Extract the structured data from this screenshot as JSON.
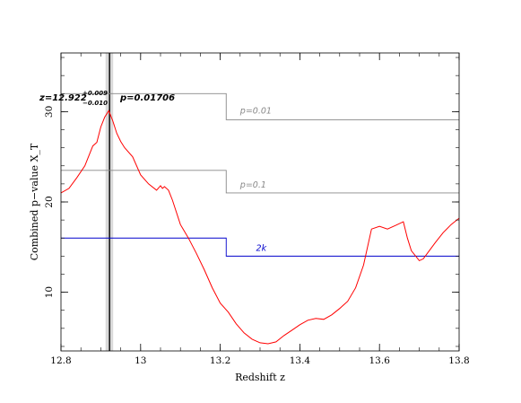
{
  "chart_data": {
    "type": "line",
    "title": "",
    "xlabel": "Redshift z",
    "ylabel": "Combined p−value X_T",
    "xlim": [
      12.8,
      13.8
    ],
    "ylim": [
      3.5,
      36.5
    ],
    "grid": false,
    "x_ticks": [
      {
        "value": 12.8,
        "label": "12.8"
      },
      {
        "value": 13.0,
        "label": "13"
      },
      {
        "value": 13.2,
        "label": "13.2"
      },
      {
        "value": 13.4,
        "label": "13.4"
      },
      {
        "value": 13.6,
        "label": "13.6"
      },
      {
        "value": 13.8,
        "label": "13.8"
      }
    ],
    "y_ticks": [
      {
        "value": 10,
        "label": "10"
      },
      {
        "value": 20,
        "label": "20"
      },
      {
        "value": 30,
        "label": "30"
      }
    ],
    "colors": {
      "curve": "#ff0000",
      "threshold_gray": "#888888",
      "threshold_blue": "#0000cc",
      "band": "#cccccc",
      "peak_line": "#000000"
    },
    "curve": {
      "x": [
        12.8,
        12.82,
        12.84,
        12.86,
        12.88,
        12.89,
        12.9,
        12.91,
        12.92,
        12.93,
        12.94,
        12.95,
        12.96,
        12.98,
        13.0,
        13.02,
        13.04,
        13.05,
        13.055,
        13.06,
        13.07,
        13.08,
        13.1,
        13.12,
        13.14,
        13.16,
        13.18,
        13.2,
        13.22,
        13.24,
        13.26,
        13.28,
        13.3,
        13.32,
        13.34,
        13.36,
        13.38,
        13.4,
        13.42,
        13.44,
        13.46,
        13.48,
        13.5,
        13.52,
        13.54,
        13.56,
        13.58,
        13.6,
        13.62,
        13.64,
        13.66,
        13.67,
        13.68,
        13.7,
        13.71,
        13.72,
        13.74,
        13.76,
        13.78,
        13.8
      ],
      "y": [
        21.0,
        21.5,
        22.7,
        24.0,
        26.2,
        26.6,
        28.3,
        29.4,
        30.1,
        29.0,
        27.6,
        26.7,
        26.0,
        25.0,
        23.0,
        22.0,
        21.3,
        21.8,
        21.5,
        21.7,
        21.3,
        20.2,
        17.5,
        16.0,
        14.3,
        12.5,
        10.5,
        8.8,
        7.8,
        6.5,
        5.5,
        4.8,
        4.4,
        4.3,
        4.5,
        5.2,
        5.8,
        6.4,
        6.9,
        7.1,
        7.0,
        7.5,
        8.2,
        9.0,
        10.5,
        13.0,
        17.0,
        17.3,
        17.0,
        17.4,
        17.8,
        16.0,
        14.6,
        13.5,
        13.7,
        14.3,
        15.5,
        16.6,
        17.5,
        18.2
      ]
    },
    "thresholds": [
      {
        "label": "p=0.01",
        "y_low": 32.0,
        "y_high": 29.1,
        "label_x": 13.25,
        "label_y": 29.8,
        "color": "#888888"
      },
      {
        "label": "p=0.1",
        "y_low": 23.5,
        "y_high": 21.0,
        "label_x": 13.25,
        "label_y": 21.6,
        "color": "#888888"
      },
      {
        "label": "2k",
        "y_low": 16.0,
        "y_high": 14.0,
        "label_x": 13.29,
        "label_y": 14.6,
        "color": "#0000cc"
      }
    ],
    "step_x": 13.215,
    "peak": {
      "z": 12.922,
      "z_plus": 0.009,
      "z_minus": 0.01,
      "band": [
        12.912,
        12.931
      ],
      "label_z": "z=12.922",
      "label_sup": "+0.009",
      "label_sub": "−0.010",
      "label_p": "p=0.01706"
    }
  }
}
